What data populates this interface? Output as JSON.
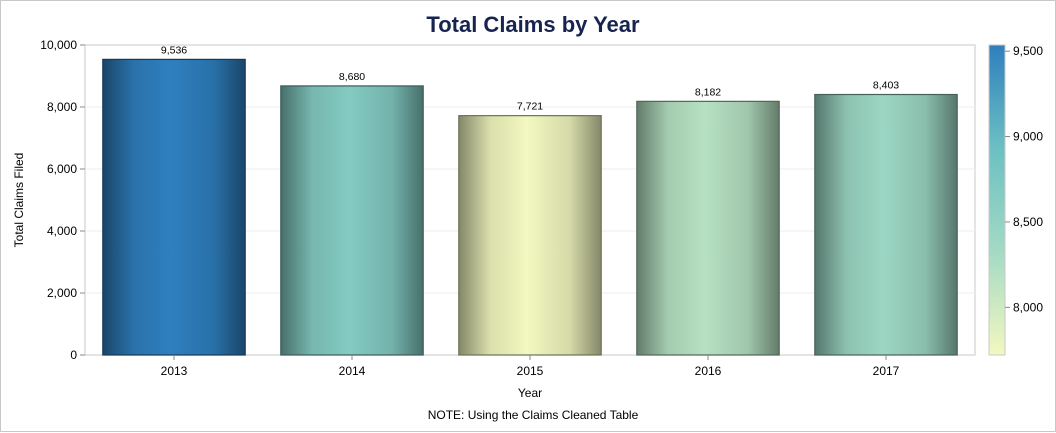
{
  "chart_data": {
    "type": "bar",
    "title": "Total Claims by Year",
    "xlabel": "Year",
    "ylabel": "Total Claims Filed",
    "categories": [
      "2013",
      "2014",
      "2015",
      "2016",
      "2017"
    ],
    "values": [
      9536,
      8680,
      7721,
      8182,
      8403
    ],
    "data_labels": [
      "9,536",
      "8,680",
      "7,721",
      "8,182",
      "8,403"
    ],
    "ylim": [
      0,
      10000
    ],
    "yticks": [
      0,
      2000,
      4000,
      6000,
      8000,
      10000
    ],
    "ytick_labels": [
      "0",
      "2,000",
      "4,000",
      "6,000",
      "8,000",
      "10,000"
    ],
    "grid": true,
    "color_scale": {
      "range": [
        7721,
        9536
      ],
      "ticks": [
        8000,
        8500,
        9000,
        9500
      ],
      "tick_labels": [
        "8,000",
        "8,500",
        "9,000",
        "9,500"
      ],
      "stops": [
        "#f2f8bf",
        "#a3dac4",
        "#6cc0c2",
        "#2f7fbf"
      ],
      "placement": "right"
    },
    "note": "NOTE: Using the Claims Cleaned Table"
  }
}
